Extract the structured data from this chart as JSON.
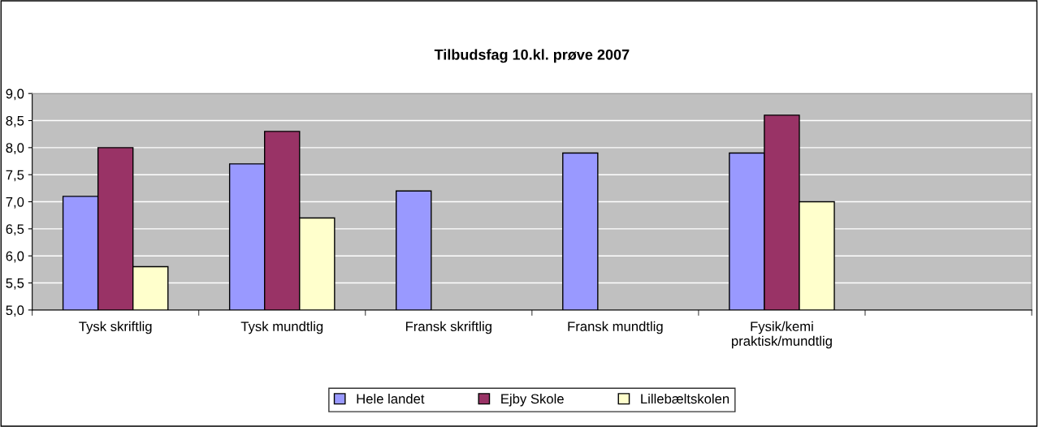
{
  "chart_data": {
    "type": "bar",
    "title": "Tilbudsfag 10.kl. prøve 2007",
    "categories": [
      "Tysk skriftlig",
      "Tysk mundtlig",
      "Fransk skriftlig",
      "Fransk mundtlig",
      "Fysik/kemi\npraktisk/mundtlig",
      null
    ],
    "series": [
      {
        "name": "Hele landet",
        "color": "#9999ff",
        "values": [
          7.1,
          7.7,
          7.2,
          7.9,
          7.9,
          null
        ]
      },
      {
        "name": "Ejby Skole",
        "color": "#993366",
        "values": [
          8.0,
          8.3,
          null,
          null,
          8.6,
          null
        ]
      },
      {
        "name": "Lillebæltskolen",
        "color": "#ffffcc",
        "values": [
          5.8,
          6.7,
          null,
          null,
          7.0,
          null
        ]
      }
    ],
    "ylim": [
      5.0,
      9.0
    ],
    "yticks": [
      {
        "value": 5.0,
        "label": "5,0"
      },
      {
        "value": 5.5,
        "label": "5,5"
      },
      {
        "value": 6.0,
        "label": "6,0"
      },
      {
        "value": 6.5,
        "label": "6,5"
      },
      {
        "value": 7.0,
        "label": "7,0"
      },
      {
        "value": 7.5,
        "label": "7,5"
      },
      {
        "value": 8.0,
        "label": "8,0"
      },
      {
        "value": 8.5,
        "label": "8,5"
      },
      {
        "value": 9.0,
        "label": "9,0"
      }
    ],
    "grid": "y",
    "legend": "bottom"
  }
}
